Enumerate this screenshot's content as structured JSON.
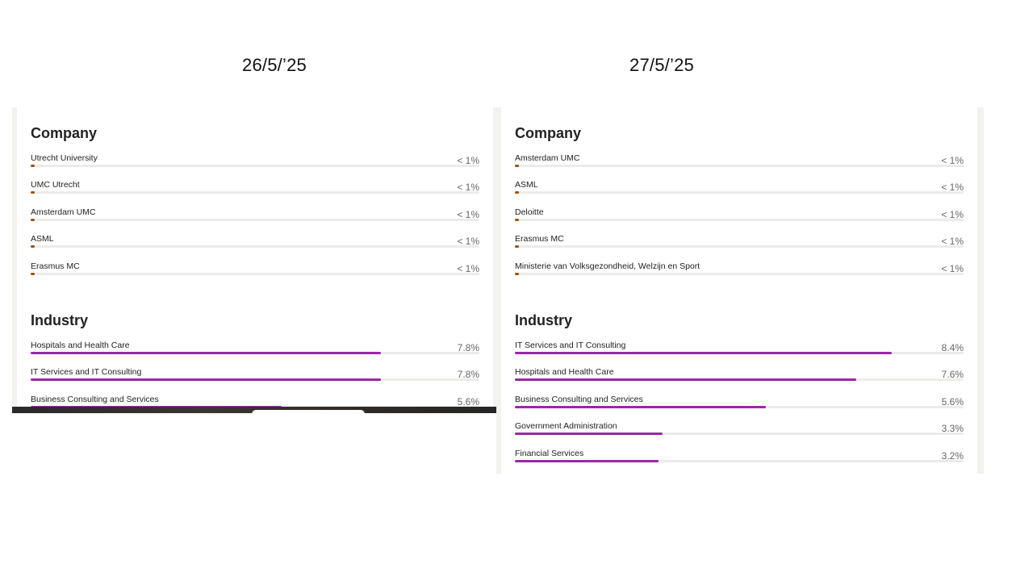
{
  "left": {
    "date": "26/5/’25",
    "company_title": "Company",
    "companies": [
      {
        "name": "Utrecht University",
        "value": "< 1%",
        "fraction": 0.01
      },
      {
        "name": "UMC Utrecht",
        "value": "< 1%",
        "fraction": 0.01
      },
      {
        "name": "Amsterdam UMC",
        "value": "< 1%",
        "fraction": 0.01
      },
      {
        "name": "ASML",
        "value": "< 1%",
        "fraction": 0.01
      },
      {
        "name": "Erasmus MC",
        "value": "< 1%",
        "fraction": 0.01
      }
    ],
    "industry_title": "Industry",
    "industries": [
      {
        "name": "Hospitals and Health Care",
        "value": "7.8%",
        "fraction": 0.078
      },
      {
        "name": "IT Services and IT Consulting",
        "value": "7.8%",
        "fraction": 0.078
      },
      {
        "name": "Business Consulting and Services",
        "value": "5.6%",
        "fraction": 0.056
      }
    ]
  },
  "right": {
    "date": "27/5/’25",
    "company_title": "Company",
    "companies": [
      {
        "name": "Amsterdam UMC",
        "value": "< 1%",
        "fraction": 0.01
      },
      {
        "name": "ASML",
        "value": "< 1%",
        "fraction": 0.01
      },
      {
        "name": "Deloitte",
        "value": "< 1%",
        "fraction": 0.01
      },
      {
        "name": "Erasmus MC",
        "value": "< 1%",
        "fraction": 0.01
      },
      {
        "name": "Ministerie van Volksgezondheid, Welzijn en Sport",
        "value": "< 1%",
        "fraction": 0.01
      }
    ],
    "industry_title": "Industry",
    "industries": [
      {
        "name": "IT Services and IT Consulting",
        "value": "8.4%",
        "fraction": 0.084
      },
      {
        "name": "Hospitals and Health Care",
        "value": "7.6%",
        "fraction": 0.076
      },
      {
        "name": "Business Consulting and Services",
        "value": "5.6%",
        "fraction": 0.056
      },
      {
        "name": "Government Administration",
        "value": "3.3%",
        "fraction": 0.033
      },
      {
        "name": "Financial Services",
        "value": "3.2%",
        "fraction": 0.032
      }
    ]
  },
  "colors": {
    "company_bar": "#a0520a",
    "industry_bar": "#9c27a6",
    "track": "#ecebe9"
  }
}
